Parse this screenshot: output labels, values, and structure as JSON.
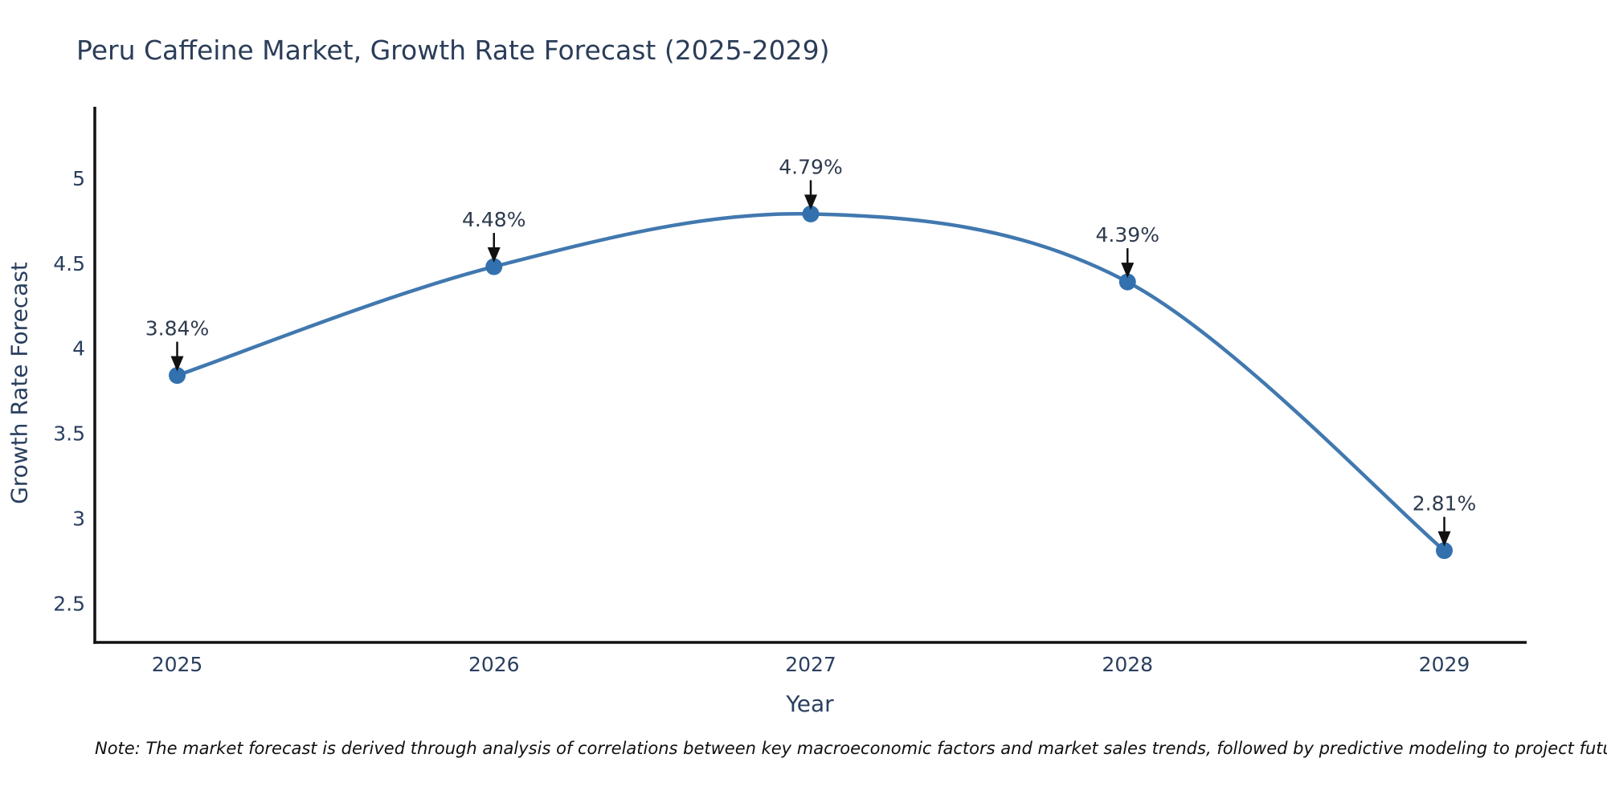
{
  "title": "Peru Caffeine Market, Growth Rate Forecast (2025-2029)",
  "note": "Note: The market forecast is derived through analysis of correlations between key macroeconomic factors and market sales trends, followed by predictive modeling to project future sales",
  "chart_data": {
    "type": "line",
    "title": "Peru Caffeine Market, Growth Rate Forecast (2025-2029)",
    "xlabel": "Year",
    "ylabel": "Growth Rate Forecast",
    "x": [
      2025,
      2026,
      2027,
      2028,
      2029
    ],
    "values": [
      3.84,
      4.48,
      4.79,
      4.39,
      2.81
    ],
    "point_labels": [
      "3.84%",
      "4.48%",
      "4.79%",
      "4.39%",
      "2.81%"
    ],
    "xticks": [
      2025,
      2026,
      2027,
      2028,
      2029
    ],
    "yticks": [
      2.5,
      3,
      3.5,
      4,
      4.5,
      5
    ],
    "xlim": [
      2024.74,
      2029.26
    ],
    "ylim": [
      2.27,
      5.42
    ],
    "grid": false,
    "legend": "none",
    "line_shape": "spline",
    "colors": {
      "line": "#4178af",
      "marker": "#3271ae",
      "axis": "#111111",
      "tick_text": "#2a3f5f",
      "annotation_text": "#2e3a4e",
      "arrow": "#111111"
    }
  }
}
